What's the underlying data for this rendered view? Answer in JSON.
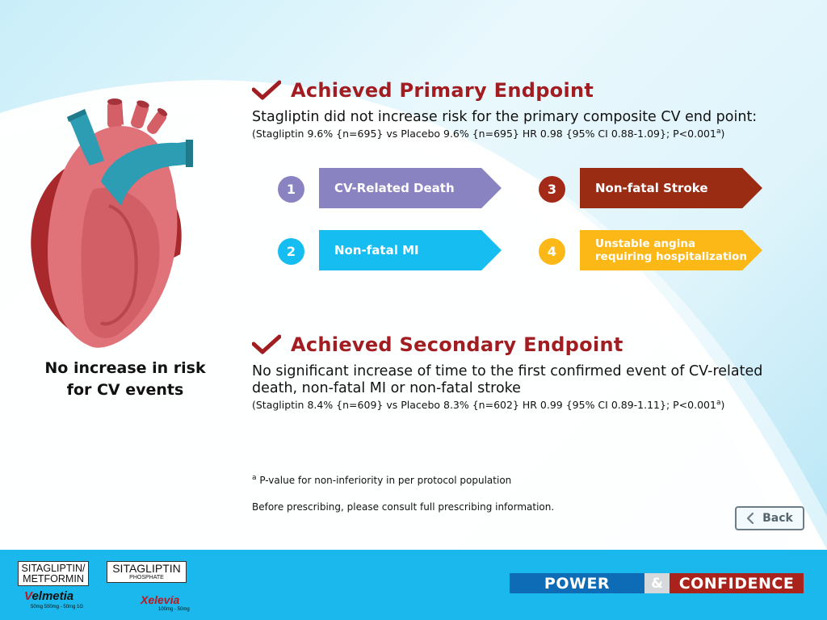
{
  "left": {
    "caption_line1": "No increase in risk",
    "caption_line2": "for CV events"
  },
  "primary": {
    "title": "Achieved Primary Endpoint",
    "description": "Stagliptin did not increase risk for the primary composite CV end point:",
    "stats": "(Stagliptin 9.6% {n=695} vs Placebo 9.6% {n=695} HR 0.98 {95% CI 0.88-1.09}; P<0.001",
    "stats_sup": "a",
    "endpoints": [
      {
        "number": "1",
        "label_line1": "CV-Related Death",
        "label_line2": "",
        "circle_color": "#8a83c2",
        "arrow_color": "#8a83c2"
      },
      {
        "number": "2",
        "label_line1": "Non-fatal MI",
        "label_line2": "",
        "circle_color": "#15bdf1",
        "arrow_color": "#15bdf1"
      },
      {
        "number": "3",
        "label_line1": "Non-fatal Stroke",
        "label_line2": "",
        "circle_color": "#a22a17",
        "arrow_color": "#9b2c14"
      },
      {
        "number": "4",
        "label_line1": "Unstable angina",
        "label_line2": "requiring hospitalization",
        "circle_color": "#fbb817",
        "arrow_color": "#fbb817"
      }
    ]
  },
  "secondary": {
    "title": "Achieved Secondary Endpoint",
    "description_line1": "No significant increase of time to the first confirmed event of CV-related",
    "description_line2": "death, non-fatal MI or non-fatal stroke",
    "stats": "(Stagliptin 8.4% {n=609} vs Placebo 8.3% {n=602} HR 0.99 {95% CI 0.89-1.11}; P<0.001",
    "stats_sup": "a"
  },
  "footnote": {
    "marker": "a",
    "text": " P-value for non-inferiority in per protocol population"
  },
  "consult_text": "Before prescribing, please consult full prescribing information.",
  "back_button": {
    "label": "Back"
  },
  "footer": {
    "logo1_line1": "SITAGLIPTIN/",
    "logo1_line2": "METFORMIN",
    "brand1_v": "V",
    "brand1_rest": "elmetia",
    "dose1": "50mg 500mg - 50mg 1G",
    "logo2_line1": "SITAGLIPTIN",
    "logo2_line2": "PHOSPHATE",
    "brand2": "Xelevia",
    "dose2": "100mg - 50mg",
    "tag_power": "POWER",
    "tag_amp": "&",
    "tag_confidence": "CONFIDENCE"
  }
}
